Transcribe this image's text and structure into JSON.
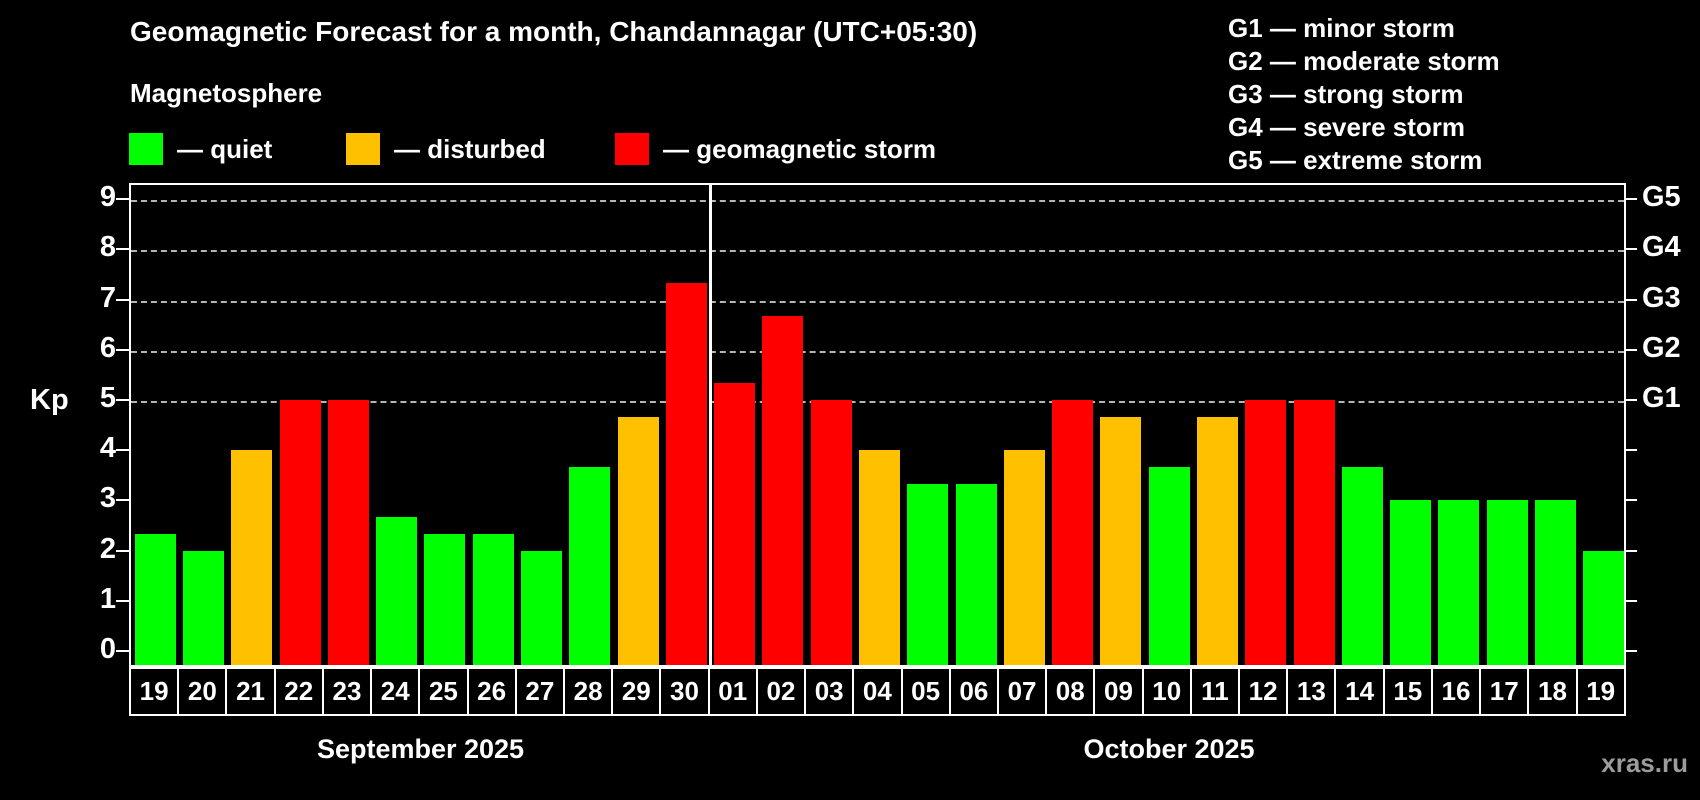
{
  "title": "Geomagnetic Forecast for a month, Chandannagar (UTC+05:30)",
  "subtitle": "Magnetosphere",
  "bar_legend": {
    "items": [
      {
        "label": "— quiet",
        "status": "quiet",
        "color": "#00ff00"
      },
      {
        "label": "— disturbed",
        "status": "disturbed",
        "color": "#ffc000"
      },
      {
        "label": "— geomagnetic storm",
        "status": "storm",
        "color": "#ff0000"
      }
    ]
  },
  "storm_scale_legend": {
    "items": [
      {
        "text": "G1 — minor storm"
      },
      {
        "text": "G2 — moderate storm"
      },
      {
        "text": "G3 — strong storm"
      },
      {
        "text": "G4 — severe storm"
      },
      {
        "text": "G5 — extreme storm"
      }
    ]
  },
  "y_axis": {
    "label": "Kp",
    "ticks": [
      0,
      1,
      2,
      3,
      4,
      5,
      6,
      7,
      8,
      9
    ]
  },
  "g_axis": {
    "labels": [
      {
        "text": "G1",
        "kp": 5
      },
      {
        "text": "G2",
        "kp": 6
      },
      {
        "text": "G3",
        "kp": 7
      },
      {
        "text": "G4",
        "kp": 8
      },
      {
        "text": "G5",
        "kp": 9
      }
    ]
  },
  "watermark": "xras.ru",
  "chart_data": {
    "type": "bar",
    "title": "Geomagnetic Forecast for a month, Chandannagar (UTC+05:30)",
    "xlabel": "",
    "ylabel": "Kp",
    "ylim": [
      0,
      9
    ],
    "grid": "horizontal dashed gridlines at Kp 5,6,7,8,9 (G1-G5 storm levels)",
    "legend_position": "top",
    "status_colors": {
      "quiet": "#00ff00",
      "disturbed": "#ffc000",
      "storm": "#ff0000"
    },
    "groups": [
      {
        "label": "September 2025",
        "days": [
          "19",
          "20",
          "21",
          "22",
          "23",
          "24",
          "25",
          "26",
          "27",
          "28",
          "29",
          "30"
        ],
        "values": [
          2.33,
          2,
          4,
          5,
          5,
          2.67,
          2.33,
          2.33,
          2,
          3.67,
          4.67,
          7.33
        ],
        "status": [
          "quiet",
          "quiet",
          "disturbed",
          "storm",
          "storm",
          "quiet",
          "quiet",
          "quiet",
          "quiet",
          "quiet",
          "disturbed",
          "storm"
        ]
      },
      {
        "label": "October 2025",
        "days": [
          "01",
          "02",
          "03",
          "04",
          "05",
          "06",
          "07",
          "08",
          "09",
          "10",
          "11",
          "12",
          "13",
          "14",
          "15",
          "16",
          "17",
          "18",
          "19"
        ],
        "values": [
          5.33,
          6.67,
          5,
          4,
          3.33,
          3.33,
          4,
          5,
          4.67,
          3.67,
          4.67,
          5,
          5,
          3.67,
          3,
          3,
          3,
          3,
          2
        ],
        "status": [
          "storm",
          "storm",
          "storm",
          "disturbed",
          "quiet",
          "quiet",
          "disturbed",
          "storm",
          "disturbed",
          "quiet",
          "disturbed",
          "storm",
          "storm",
          "quiet",
          "quiet",
          "quiet",
          "quiet",
          "quiet",
          "quiet"
        ]
      }
    ]
  }
}
